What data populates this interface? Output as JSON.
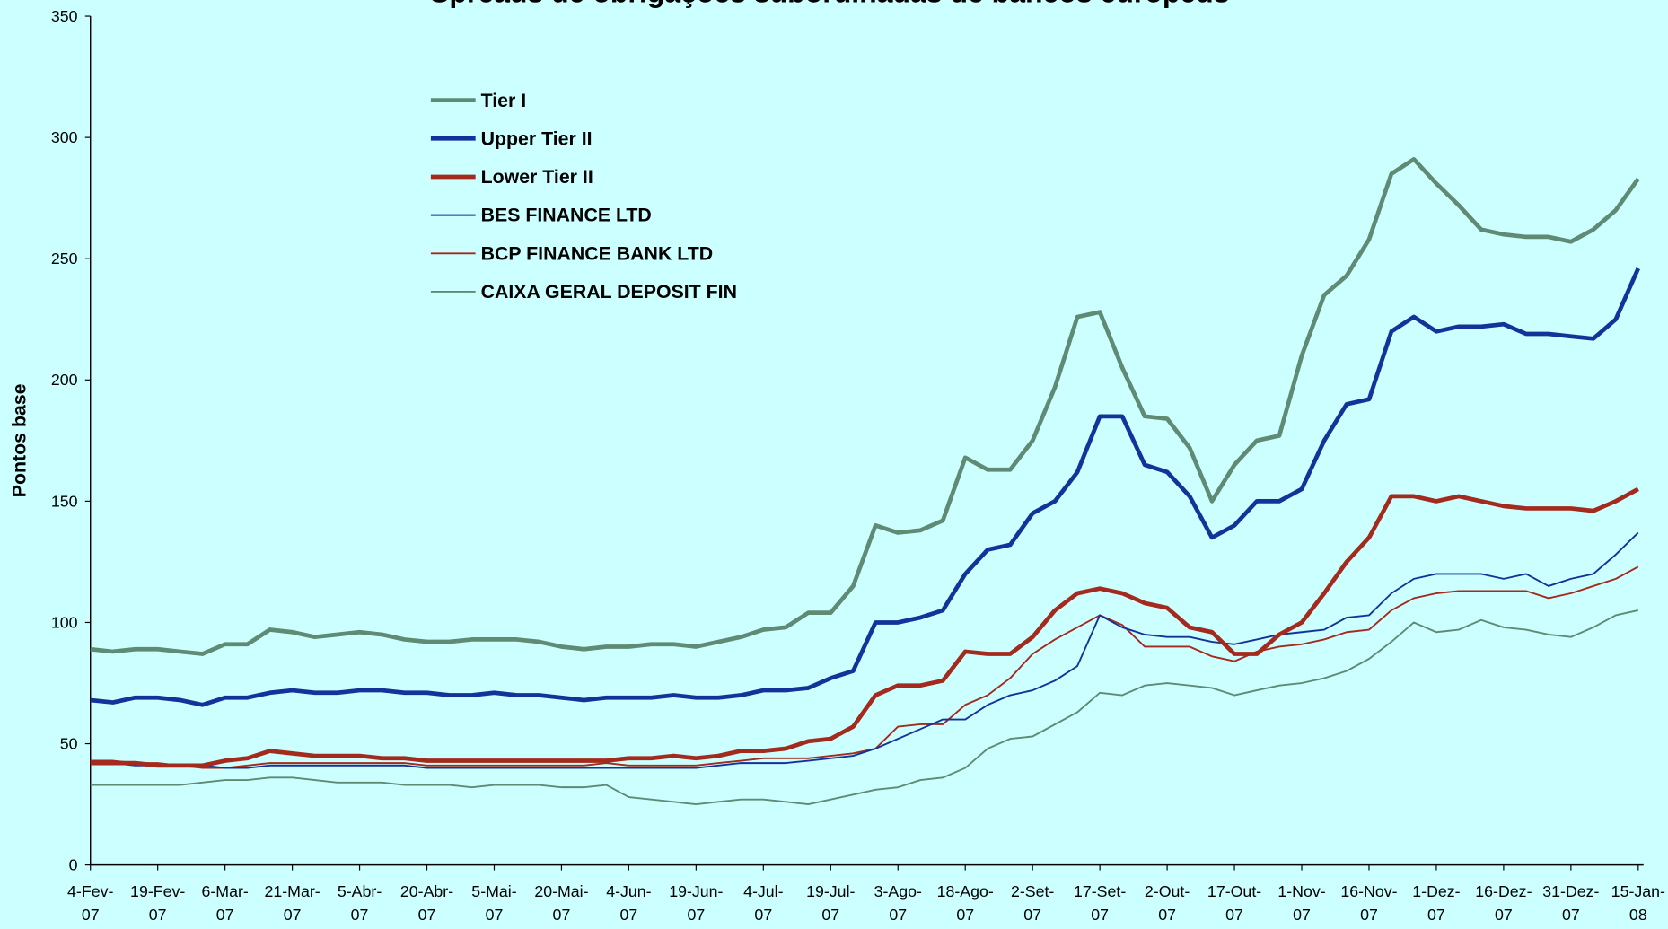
{
  "chart_data": {
    "type": "line",
    "title": "Spreads de obrigações subordinadas de bancos europeus",
    "ylabel": "Pontos base",
    "categories": [
      "4-Fev-07",
      null,
      null,
      "19-Fev-07",
      null,
      null,
      "6-Mar-07",
      null,
      null,
      "21-Mar-07",
      null,
      null,
      "5-Abr-07",
      null,
      null,
      "20-Abr-07",
      null,
      null,
      "5-Mai-07",
      null,
      null,
      "20-Mai-07",
      null,
      null,
      "4-Jun-07",
      null,
      null,
      "19-Jun-07",
      null,
      null,
      "4-Jul-07",
      null,
      null,
      "19-Jul-07",
      null,
      null,
      "3-Ago-07",
      null,
      null,
      "18-Ago-07",
      null,
      null,
      "2-Set-07",
      null,
      null,
      "17-Set-07",
      null,
      null,
      "2-Out-07",
      null,
      null,
      "17-Out-07",
      null,
      null,
      "1-Nov-07",
      null,
      null,
      "16-Nov-07",
      null,
      null,
      "1-Dez-07",
      null,
      null,
      "16-Dez-07",
      null,
      null,
      "31-Dez-07",
      null,
      null,
      "15-Jan-08"
    ],
    "ylim": [
      0,
      350
    ],
    "yticks": [
      0,
      50,
      100,
      150,
      200,
      250,
      300,
      350
    ],
    "grid": false,
    "series": [
      {
        "name": "Tier I",
        "color": "#5f8a73",
        "width": 4,
        "values": [
          89,
          88,
          89,
          89,
          88,
          87,
          91,
          91,
          97,
          96,
          94,
          95,
          96,
          95,
          93,
          92,
          92,
          93,
          93,
          93,
          92,
          90,
          89,
          90,
          90,
          91,
          91,
          90,
          92,
          94,
          97,
          98,
          104,
          104,
          115,
          140,
          137,
          138,
          142,
          168,
          163,
          163,
          175,
          197,
          226,
          228,
          205,
          185,
          184,
          172,
          150,
          165,
          175,
          177,
          210,
          235,
          243,
          258,
          285,
          291,
          281,
          272,
          262,
          260,
          259,
          259,
          257,
          262,
          270,
          283
        ]
      },
      {
        "name": "Upper Tier II",
        "color": "#14339a",
        "width": 4,
        "values": [
          68,
          67,
          69,
          69,
          68,
          66,
          69,
          69,
          71,
          72,
          71,
          71,
          72,
          72,
          71,
          71,
          70,
          70,
          71,
          70,
          70,
          69,
          68,
          69,
          69,
          69,
          70,
          69,
          69,
          70,
          72,
          72,
          73,
          77,
          80,
          100,
          100,
          102,
          105,
          120,
          130,
          132,
          145,
          150,
          162,
          185,
          185,
          165,
          162,
          152,
          135,
          140,
          150,
          150,
          155,
          175,
          190,
          192,
          220,
          226,
          220,
          222,
          222,
          223,
          219,
          219,
          218,
          217,
          225,
          246
        ]
      },
      {
        "name": "Lower Tier II",
        "color": "#a32a1c",
        "width": 4,
        "values": [
          42,
          42,
          42,
          41,
          41,
          41,
          43,
          44,
          47,
          46,
          45,
          45,
          45,
          44,
          44,
          43,
          43,
          43,
          43,
          43,
          43,
          43,
          43,
          43,
          44,
          44,
          45,
          44,
          45,
          47,
          47,
          48,
          51,
          52,
          57,
          70,
          74,
          74,
          76,
          88,
          87,
          87,
          94,
          105,
          112,
          114,
          112,
          108,
          106,
          98,
          96,
          87,
          87,
          95,
          100,
          112,
          125,
          135,
          152,
          152,
          150,
          152,
          150,
          148,
          147,
          147,
          147,
          146,
          150,
          155
        ]
      },
      {
        "name": "BES FINANCE LTD",
        "color": "#14339a",
        "width": 1.6,
        "values": [
          42,
          42,
          41,
          41,
          41,
          41,
          40,
          40,
          41,
          41,
          41,
          41,
          41,
          41,
          41,
          40,
          40,
          40,
          40,
          40,
          40,
          40,
          40,
          40,
          40,
          40,
          40,
          40,
          41,
          42,
          42,
          42,
          43,
          44,
          45,
          48,
          52,
          56,
          60,
          60,
          66,
          70,
          72,
          76,
          82,
          103,
          98,
          95,
          94,
          94,
          92,
          91,
          93,
          95,
          96,
          97,
          102,
          103,
          112,
          118,
          120,
          120,
          120,
          118,
          120,
          115,
          118,
          120,
          128,
          137
        ]
      },
      {
        "name": "BCP FINANCE BANK LTD",
        "color": "#a32a1c",
        "width": 1.6,
        "values": [
          43,
          43,
          42,
          42,
          41,
          40,
          40,
          41,
          42,
          42,
          42,
          42,
          42,
          42,
          42,
          41,
          41,
          41,
          41,
          41,
          41,
          41,
          41,
          42,
          41,
          41,
          41,
          41,
          42,
          43,
          44,
          44,
          44,
          45,
          46,
          48,
          57,
          58,
          58,
          66,
          70,
          77,
          87,
          93,
          98,
          103,
          99,
          90,
          90,
          90,
          86,
          84,
          88,
          90,
          91,
          93,
          96,
          97,
          105,
          110,
          112,
          113,
          113,
          113,
          113,
          110,
          112,
          115,
          118,
          123
        ]
      },
      {
        "name": "CAIXA GERAL DEPOSIT FIN",
        "color": "#5f8a73",
        "width": 1.6,
        "values": [
          33,
          33,
          33,
          33,
          33,
          34,
          35,
          35,
          36,
          36,
          35,
          34,
          34,
          34,
          33,
          33,
          33,
          32,
          33,
          33,
          33,
          32,
          32,
          33,
          28,
          27,
          26,
          25,
          26,
          27,
          27,
          26,
          25,
          27,
          29,
          31,
          32,
          35,
          36,
          40,
          48,
          52,
          53,
          58,
          63,
          71,
          70,
          74,
          75,
          74,
          73,
          70,
          72,
          74,
          75,
          77,
          80,
          85,
          92,
          100,
          96,
          97,
          101,
          98,
          97,
          95,
          94,
          98,
          103,
          105
        ]
      }
    ]
  }
}
